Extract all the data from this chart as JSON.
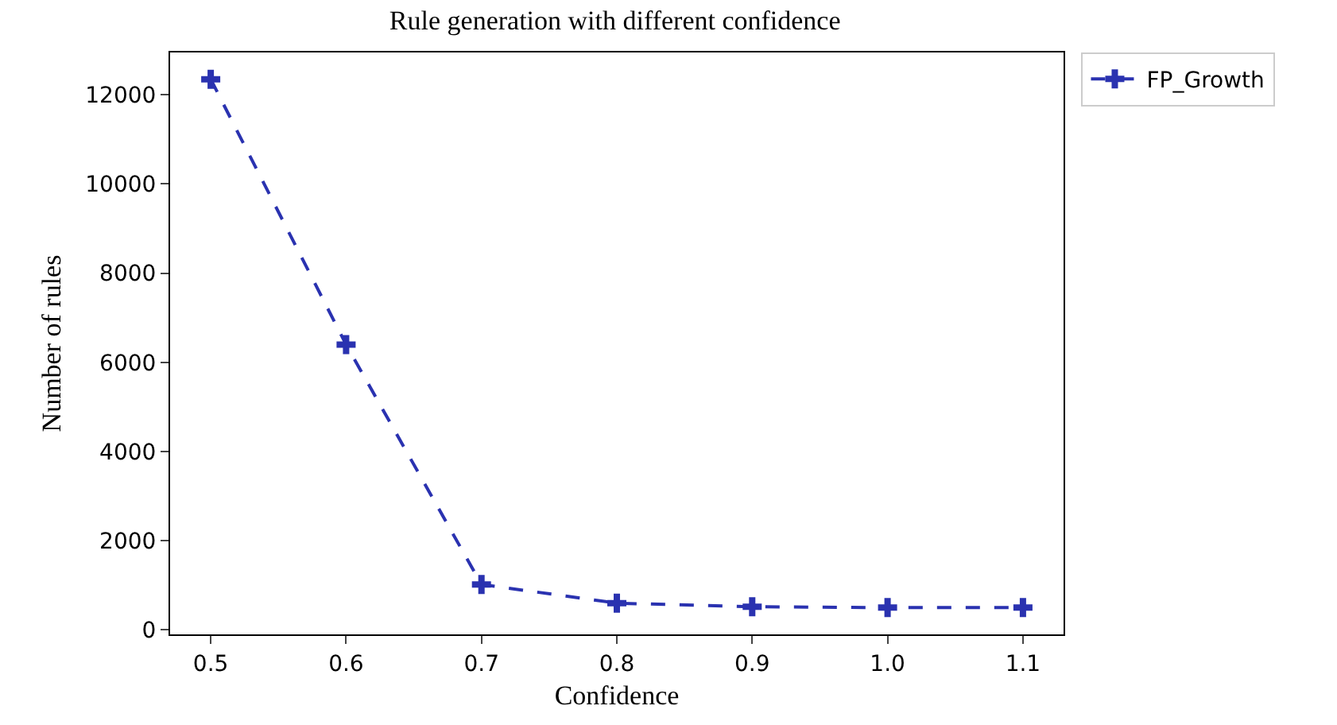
{
  "chart_data": {
    "type": "line",
    "title": "Rule generation with different confidence",
    "xlabel": "Confidence",
    "ylabel": "Number of rules",
    "x": [
      0.5,
      0.6,
      0.7,
      0.8,
      0.9,
      1.0,
      1.1
    ],
    "series": [
      {
        "name": "FP_Growth",
        "color": "#2a32b0",
        "values": [
          12350,
          6400,
          1020,
          600,
          520,
          500,
          500
        ]
      }
    ],
    "xlim": [
      0.47,
      1.13
    ],
    "xticks": [
      0.5,
      0.6,
      0.7,
      0.8,
      0.9,
      {
        "value": 1.0,
        "label": "1.0"
      },
      1.1
    ],
    "ylim": [
      -100,
      12950
    ],
    "yticks": [
      0,
      2000,
      4000,
      6000,
      8000,
      10000,
      12000
    ],
    "grid": false,
    "legend": "top right",
    "marker": "cross",
    "line_style": "dashed"
  }
}
